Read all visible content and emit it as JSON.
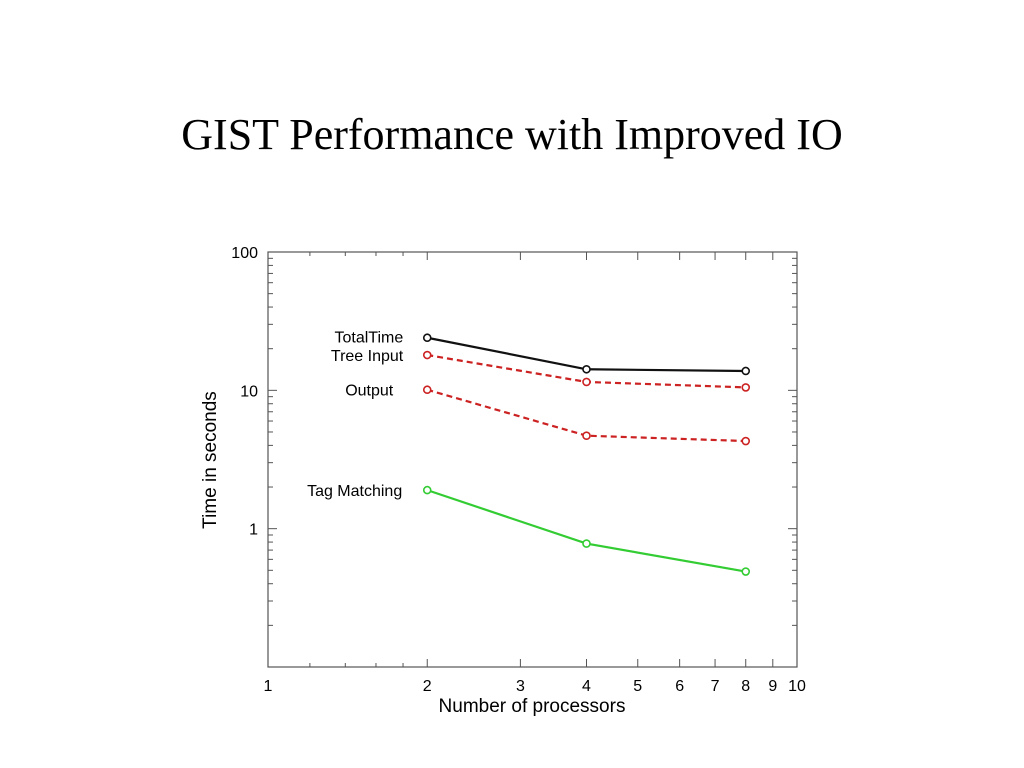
{
  "slide": {
    "title": "GIST Performance with Improved IO"
  },
  "chart_data": {
    "type": "line",
    "xlabel": "Number of processors",
    "ylabel": "Time in seconds",
    "xscale": "log",
    "yscale": "log",
    "xlim": [
      1,
      10
    ],
    "ylim": [
      0.1,
      100
    ],
    "xticks": [
      {
        "value": 1,
        "label": "1"
      },
      {
        "value": 2,
        "label": "2"
      },
      {
        "value": 3,
        "label": "3"
      },
      {
        "value": 4,
        "label": "4"
      },
      {
        "value": 5,
        "label": "5"
      },
      {
        "value": 6,
        "label": "6"
      },
      {
        "value": 7,
        "label": "7"
      },
      {
        "value": 8,
        "label": "8"
      },
      {
        "value": 9,
        "label": "9"
      },
      {
        "value": 10,
        "label": "10"
      }
    ],
    "yticks": [
      {
        "value": 1,
        "label": "1"
      },
      {
        "value": 10,
        "label": "10"
      },
      {
        "value": 100,
        "label": "100"
      }
    ],
    "grid": false,
    "legend": "inline labels at left of each series",
    "x": [
      2,
      4,
      8
    ],
    "series": [
      {
        "name": "TotalTime",
        "values": [
          24,
          14.2,
          13.8
        ],
        "color": "#111111",
        "dash": "solid"
      },
      {
        "name": "Tree Input",
        "values": [
          18,
          11.5,
          10.5
        ],
        "color": "#cc2222",
        "dash": "dashed"
      },
      {
        "name": "Output",
        "values": [
          10.1,
          4.7,
          4.3
        ],
        "color": "#cc2222",
        "dash": "dashed"
      },
      {
        "name": "Tag Matching",
        "values": [
          1.9,
          0.78,
          0.49
        ],
        "color": "#33cc33",
        "dash": "solid"
      }
    ]
  }
}
